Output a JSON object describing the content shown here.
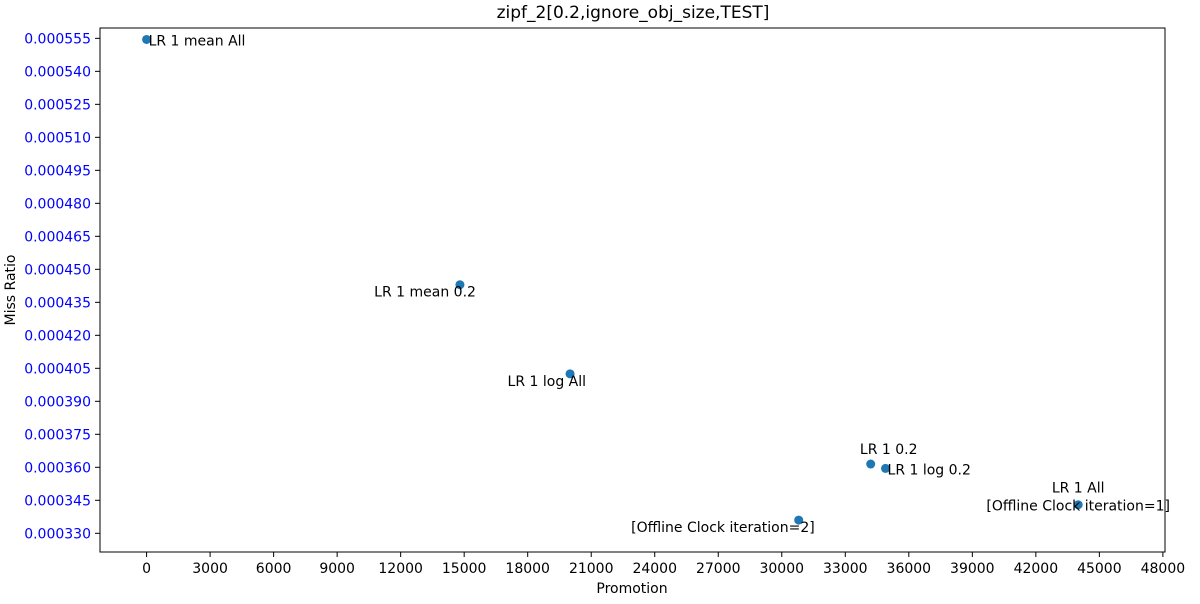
{
  "chart_data": {
    "type": "scatter",
    "title": "zipf_2[0.2,ignore_obj_size,TEST]",
    "xlabel": "Promotion",
    "ylabel": "Miss Ratio",
    "xlim": [
      -2200,
      48100
    ],
    "ylim": [
      0.0003215,
      0.0005597
    ],
    "xticks": [
      "0",
      "3000",
      "6000",
      "9000",
      "12000",
      "15000",
      "18000",
      "21000",
      "24000",
      "27000",
      "30000",
      "33000",
      "36000",
      "39000",
      "42000",
      "45000",
      "48000"
    ],
    "yticks": [
      "0.000330",
      "0.000345",
      "0.000360",
      "0.000375",
      "0.000390",
      "0.000405",
      "0.000420",
      "0.000435",
      "0.000450",
      "0.000465",
      "0.000480",
      "0.000495",
      "0.000510",
      "0.000525",
      "0.000540",
      "0.000555"
    ],
    "ytick_color": "#0000ff",
    "marker_color": "#1f77b4",
    "points": [
      {
        "x": 0,
        "y": 0.0005545,
        "label": "LR 1 mean All",
        "label_pos": "right"
      },
      {
        "x": 14800,
        "y": 0.000443,
        "label": "LR 1 mean 0.2",
        "label_pos": "below-left"
      },
      {
        "x": 20000,
        "y": 0.0004025,
        "label": "LR 1 log All",
        "label_pos": "below-left"
      },
      {
        "x": 34200,
        "y": 0.0003615,
        "label": "LR 1 0.2",
        "label_pos": "above"
      },
      {
        "x": 34900,
        "y": 0.0003595,
        "label": "LR 1 log 0.2",
        "label_pos": "right"
      },
      {
        "x": 30800,
        "y": 0.000336,
        "label": "[Offline Clock iteration=2]",
        "label_pos": "below-left"
      },
      {
        "x": 44000,
        "y": 0.000343,
        "label": "LR 1 All\n[Offline Clock iteration=1]",
        "label_pos": "center-above"
      }
    ],
    "grid": false,
    "legend": "none"
  }
}
